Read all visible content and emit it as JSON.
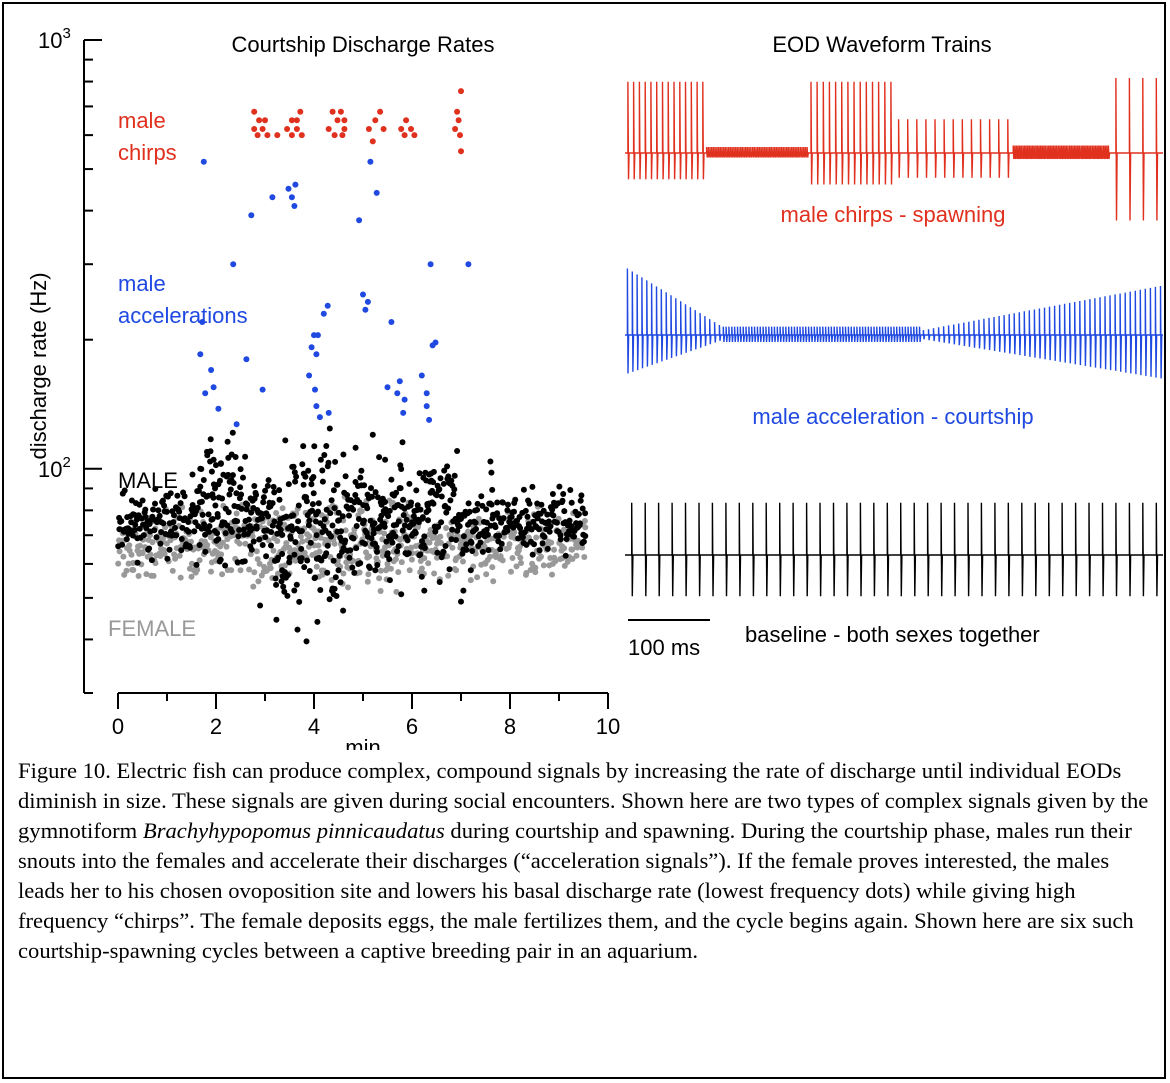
{
  "chart_data": [
    {
      "type": "scatter",
      "title": "Courtship Discharge Rates",
      "xlabel": "min",
      "ylabel": "discharge rate (Hz)",
      "xlim": [
        0,
        10
      ],
      "ylim": [
        30,
        1000
      ],
      "yscale": "log",
      "xticks": [
        0,
        2,
        4,
        6,
        8,
        10
      ],
      "yticks": [
        {
          "value": 1000,
          "base": "10",
          "exp": "3"
        },
        {
          "value": 100,
          "base": "10",
          "exp": "2"
        }
      ],
      "grid": false,
      "annotations": [
        {
          "lines": [
            "male",
            "chirps"
          ],
          "color": "#e0301e"
        },
        {
          "lines": [
            "male",
            "accelerations"
          ],
          "color": "#1f49e0"
        },
        {
          "lines": [
            "MALE"
          ],
          "color": "#000000"
        },
        {
          "lines": [
            "FEMALE"
          ],
          "color": "#999999"
        }
      ],
      "series": [
        {
          "color": "#e0301e",
          "points": [
            [
              2.78,
              680
            ],
            [
              2.88,
              650
            ],
            [
              2.95,
              620
            ],
            [
              2.78,
              620
            ],
            [
              2.85,
              600
            ],
            [
              3.05,
              600
            ],
            [
              3.0,
              650
            ],
            [
              3.25,
              600
            ],
            [
              3.45,
              620
            ],
            [
              3.55,
              650
            ],
            [
              3.65,
              650
            ],
            [
              3.55,
              600
            ],
            [
              3.65,
              620
            ],
            [
              3.75,
              600
            ],
            [
              3.72,
              680
            ],
            [
              4.3,
              620
            ],
            [
              4.38,
              680
            ],
            [
              4.42,
              600
            ],
            [
              4.48,
              650
            ],
            [
              4.55,
              680
            ],
            [
              4.62,
              650
            ],
            [
              4.62,
              620
            ],
            [
              4.58,
              600
            ],
            [
              5.12,
              620
            ],
            [
              5.25,
              650
            ],
            [
              5.35,
              680
            ],
            [
              5.42,
              620
            ],
            [
              5.2,
              580
            ],
            [
              5.78,
              620
            ],
            [
              5.88,
              650
            ],
            [
              5.98,
              620
            ],
            [
              5.85,
              600
            ],
            [
              6.05,
              600
            ],
            [
              6.88,
              620
            ],
            [
              6.95,
              650
            ],
            [
              6.98,
              600
            ],
            [
              6.92,
              680
            ],
            [
              7.0,
              760
            ],
            [
              7.0,
              550
            ]
          ]
        },
        {
          "color": "#1f49e0",
          "points": [
            [
              1.68,
              185
            ],
            [
              1.75,
              520
            ],
            [
              1.72,
              220
            ],
            [
              1.78,
              150
            ],
            [
              1.9,
              170
            ],
            [
              1.95,
              155
            ],
            [
              2.05,
              138
            ],
            [
              2.35,
              300
            ],
            [
              2.42,
              127
            ],
            [
              2.62,
              180
            ],
            [
              2.72,
              390
            ],
            [
              2.95,
              153
            ],
            [
              3.15,
              430
            ],
            [
              3.48,
              450
            ],
            [
              3.55,
              430
            ],
            [
              3.62,
              460
            ],
            [
              3.6,
              410
            ],
            [
              3.9,
              165
            ],
            [
              3.95,
              192
            ],
            [
              4.0,
              205
            ],
            [
              4.05,
              185
            ],
            [
              4.08,
              205
            ],
            [
              4.2,
              230
            ],
            [
              4.28,
              240
            ],
            [
              4.02,
              153
            ],
            [
              4.12,
              132
            ],
            [
              4.05,
              140
            ],
            [
              4.3,
              135
            ],
            [
              4.92,
              380
            ],
            [
              5.0,
              255
            ],
            [
              5.05,
              235
            ],
            [
              5.1,
              245
            ],
            [
              5.15,
              520
            ],
            [
              5.28,
              440
            ],
            [
              5.5,
              155
            ],
            [
              5.58,
              220
            ],
            [
              5.7,
              150
            ],
            [
              5.75,
              160
            ],
            [
              5.82,
              135
            ],
            [
              5.85,
              145
            ],
            [
              6.2,
              165
            ],
            [
              6.3,
              140
            ],
            [
              6.3,
              150
            ],
            [
              6.35,
              130
            ],
            [
              6.38,
              300
            ],
            [
              6.42,
              194
            ],
            [
              6.48,
              197
            ],
            [
              7.15,
              300
            ]
          ]
        },
        {
          "color": "#000000",
          "segments": [
            {
              "x0": 0.0,
              "x1": 1.6,
              "c": 75,
              "noise": 0.035,
              "n": 120,
              "seed": 11
            },
            {
              "x0": 1.6,
              "x1": 2.6,
              "c": 82,
              "noise": 0.07,
              "n": 90,
              "seed": 12
            },
            {
              "x0": 2.6,
              "x1": 3.2,
              "c": 78,
              "noise": 0.04,
              "n": 55,
              "seed": 13
            },
            {
              "x0": 3.2,
              "x1": 4.6,
              "c": 72,
              "noise": 0.1,
              "n": 140,
              "seed": 14
            },
            {
              "x0": 4.6,
              "x1": 5.6,
              "c": 76,
              "noise": 0.06,
              "n": 90,
              "seed": 15
            },
            {
              "x0": 5.6,
              "x1": 6.9,
              "c": 80,
              "noise": 0.07,
              "n": 120,
              "seed": 16
            },
            {
              "x0": 6.9,
              "x1": 9.55,
              "c": 75,
              "noise": 0.035,
              "n": 190,
              "seed": 17
            }
          ],
          "points": [
            [
              1.52,
              97
            ],
            [
              1.68,
              100
            ],
            [
              1.88,
              104
            ],
            [
              1.95,
              105
            ],
            [
              2.0,
              102
            ],
            [
              2.1,
              103
            ],
            [
              2.25,
              106
            ],
            [
              2.32,
              108
            ],
            [
              2.05,
              92
            ],
            [
              1.98,
              90
            ],
            [
              2.9,
              48
            ],
            [
              3.8,
              59
            ],
            [
              4.25,
              113
            ],
            [
              4.6,
              108
            ],
            [
              4.85,
              112
            ],
            [
              5.2,
              120
            ],
            [
              5.45,
              105
            ],
            [
              5.78,
              51
            ],
            [
              6.25,
              52
            ],
            [
              6.35,
              97
            ],
            [
              6.92,
              110
            ],
            [
              7.0,
              49
            ],
            [
              7.05,
              52
            ],
            [
              7.6,
              104
            ],
            [
              7.62,
              98
            ],
            [
              7.2,
              58
            ],
            [
              6.2,
              56
            ],
            [
              5.55,
              55
            ],
            [
              4.5,
              58
            ],
            [
              4.4,
              61
            ],
            [
              3.6,
              63
            ],
            [
              2.7,
              66
            ],
            [
              3.35,
              58
            ],
            [
              3.5,
              62
            ],
            [
              5.25,
              58
            ]
          ]
        },
        {
          "color": "#999999",
          "segments": [
            {
              "x0": 0.0,
              "x1": 2.5,
              "c": 67,
              "noise": 0.035,
              "n": 170,
              "seed": 21
            },
            {
              "x0": 2.5,
              "x1": 4.0,
              "c": 68,
              "noise": 0.045,
              "n": 110,
              "seed": 22
            },
            {
              "x0": 4.0,
              "x1": 6.0,
              "c": 67,
              "noise": 0.05,
              "n": 150,
              "seed": 23
            },
            {
              "x0": 6.0,
              "x1": 9.55,
              "c": 66,
              "noise": 0.035,
              "n": 230,
              "seed": 24
            }
          ],
          "points": [
            [
              1.5,
              56
            ],
            [
              1.55,
              58
            ],
            [
              2.5,
              58
            ],
            [
              3.5,
              57
            ],
            [
              4.1,
              56
            ],
            [
              4.6,
              57
            ],
            [
              5.5,
              60
            ],
            [
              6.9,
              58
            ],
            [
              7.2,
              55
            ],
            [
              6.45,
              57
            ]
          ]
        }
      ]
    },
    {
      "type": "line",
      "title": "EOD Waveform Trains",
      "scale_bar_label": "100 ms",
      "traces": [
        {
          "label": "male chirps - spawning",
          "color": "#e0301e",
          "bursts": [
            {
              "t0": 0.0,
              "t1": 0.15,
              "n": 14,
              "up": 0.95,
              "dn": 0.35
            },
            {
              "t0": 0.15,
              "t1": 0.34,
              "n": 60,
              "up": 0.08,
              "dn": 0.06
            },
            {
              "t0": 0.34,
              "t1": 0.5,
              "n": 14,
              "up": 0.95,
              "dn": 0.42
            },
            {
              "t0": 0.5,
              "t1": 0.72,
              "n": 13,
              "up": 0.45,
              "dn": 0.33
            },
            {
              "t0": 0.72,
              "t1": 0.9,
              "n": 60,
              "up": 0.1,
              "dn": 0.08
            },
            {
              "t0": 0.9,
              "t1": 1.0,
              "n": 4,
              "up": 1.0,
              "dn": 0.9
            }
          ]
        },
        {
          "label": "male acceleration - courtship",
          "color": "#1f49e0",
          "bursts": [
            {
              "t0": 0.0,
              "t1": 0.18,
              "n": 20,
              "up": 0.95,
              "dn": 0.55,
              "taper": 0.85
            },
            {
              "t0": 0.18,
              "t1": 0.55,
              "n": 70,
              "up": 0.12,
              "dn": 0.1
            },
            {
              "t0": 0.55,
              "t1": 1.0,
              "n": 48,
              "up": 0.7,
              "dn": 0.62,
              "grow": 0.9
            }
          ]
        },
        {
          "label": "baseline - both sexes together",
          "color": "#000000",
          "bursts": [
            {
              "t0": 0.0,
              "t1": 1.0,
              "n": 40,
              "up": 0.95,
              "dn": 0.75
            }
          ]
        }
      ]
    }
  ],
  "caption": {
    "fig_label": "Figure 10.",
    "text_before_species": "Electric fish can produce complex, compound signals by increasing the rate of discharge until individual EODs diminish in size. These signals are given during social encounters. Shown here are two types of complex signals given by the gymnotiform",
    "species": "Brachyhypopomus pinnicaudatus",
    "text_after_species": "during courtship and spawning. During the courtship phase, males run their snouts into the females and accelerate their discharges (“acceleration signals”). If the female proves interested, the males leads her to his chosen ovoposition site and lowers his basal discharge rate (lowest frequency dots) while giving high frequency “chirps”. The female deposits eggs, the male fertilizes them, and the cycle begins again. Shown here are six such courtship-spawning cycles between a captive breeding pair in an aquarium."
  }
}
